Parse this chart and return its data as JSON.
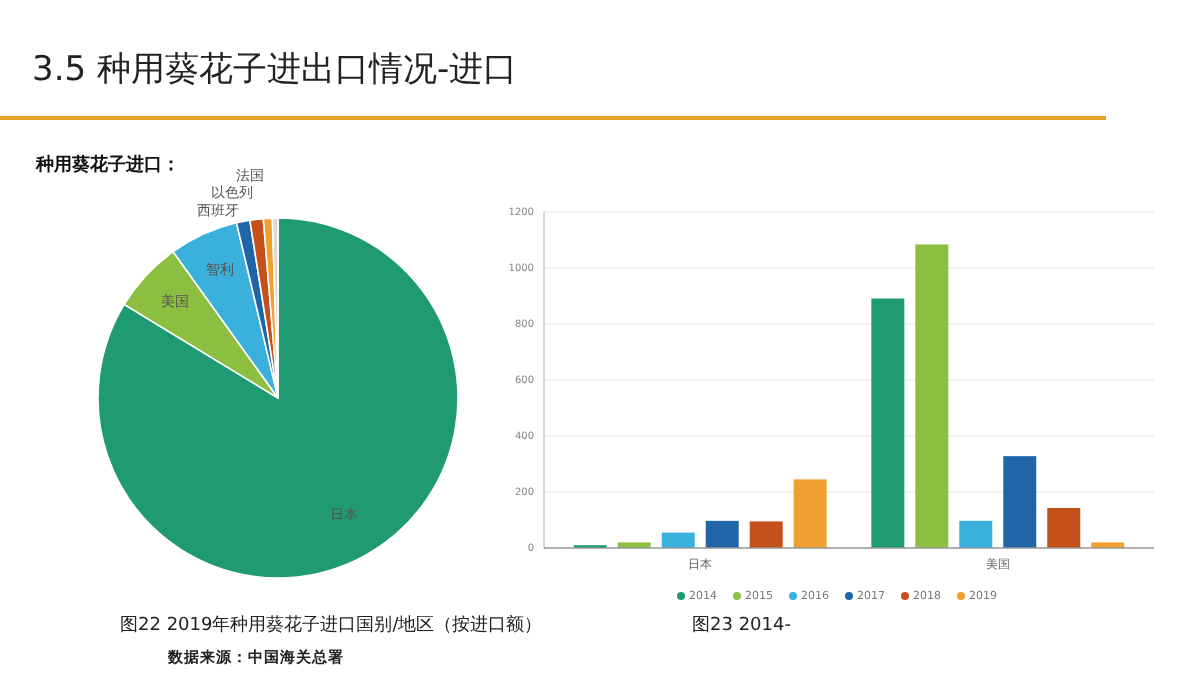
{
  "chart_data": [
    {
      "type": "pie",
      "title": "3.5   种用葵花子进出口情况-进口",
      "subtitle": "种用葵花子进口：",
      "categories": [
        "日本",
        "美国",
        "智利",
        "西班牙",
        "以色列",
        "法国",
        null
      ],
      "values": [
        83.7,
        6.4,
        6.2,
        1.2,
        1.2,
        0.8,
        0.5
      ],
      "colors": [
        "#1f9a72",
        "#8cbf3f",
        "#3ab0dc",
        "#1f65a8",
        "#c4501c",
        "#f0a030",
        "#d8d8d8"
      ],
      "annotations": [
        "图22    2019年种用葵花子进口国别/地区（按进口额）",
        "数据来源：中国海关总署"
      ]
    },
    {
      "type": "bar",
      "categories": [
        "日本",
        "美国"
      ],
      "series": [
        {
          "name": "2014",
          "color": "#1f9a72",
          "values": [
            10,
            891
          ]
        },
        {
          "name": "2015",
          "color": "#8cbf3f",
          "values": [
            20,
            1084
          ]
        },
        {
          "name": "2016",
          "color": "#3ab0dc",
          "values": [
            55,
            97
          ]
        },
        {
          "name": "2017",
          "color": "#1f65a8",
          "values": [
            97,
            328
          ]
        },
        {
          "name": "2018",
          "color": "#c4501c",
          "values": [
            95,
            143
          ]
        },
        {
          "name": "2019",
          "color": "#f0a030",
          "values": [
            245,
            20
          ]
        }
      ],
      "ylim": [
        0,
        1200
      ],
      "yticks": [
        0,
        200,
        400,
        600,
        800,
        1000,
        1200
      ],
      "grid": "y",
      "legend": "bottom",
      "annotations": [
        "图23    2014-"
      ]
    }
  ]
}
